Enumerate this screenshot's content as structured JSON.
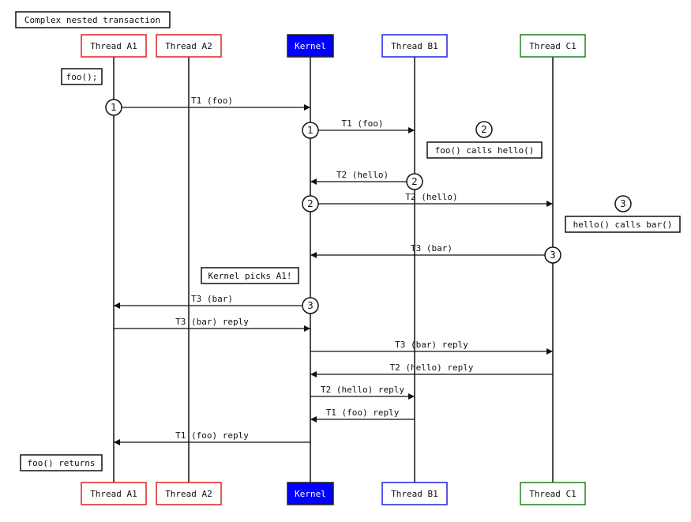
{
  "title": "Complex nested transaction",
  "participants": [
    {
      "id": "A1",
      "label": "Thread A1",
      "border": "#e02020",
      "fill": "#ffffff",
      "text": "#111111"
    },
    {
      "id": "A2",
      "label": "Thread A2",
      "border": "#e02020",
      "fill": "#ffffff",
      "text": "#111111"
    },
    {
      "id": "K",
      "label": "Kernel",
      "border": "#222222",
      "fill": "#0000ff",
      "text": "#ffffff"
    },
    {
      "id": "B1",
      "label": "Thread B1",
      "border": "#2020e0",
      "fill": "#ffffff",
      "text": "#111111"
    },
    {
      "id": "C1",
      "label": "Thread C1",
      "border": "#208020",
      "fill": "#ffffff",
      "text": "#111111"
    }
  ],
  "messages": [
    {
      "from": "A1",
      "to": "K",
      "label": "T1 (foo)",
      "marker": "1"
    },
    {
      "from": "K",
      "to": "B1",
      "label": "T1 (foo)",
      "marker": "1"
    },
    {
      "from": "B1",
      "to": "K",
      "label": "T2 (hello)",
      "marker": "2"
    },
    {
      "from": "K",
      "to": "C1",
      "label": "T2 (hello)",
      "marker": "2"
    },
    {
      "from": "C1",
      "to": "K",
      "label": "T3 (bar)",
      "marker": "3"
    },
    {
      "from": "K",
      "to": "A1",
      "label": "T3 (bar)",
      "marker": "3"
    },
    {
      "from": "A1",
      "to": "K",
      "label": "T3 (bar) reply",
      "marker": ""
    },
    {
      "from": "K",
      "to": "C1",
      "label": "T3 (bar) reply",
      "marker": ""
    },
    {
      "from": "C1",
      "to": "K",
      "label": "T2 (hello) reply",
      "marker": ""
    },
    {
      "from": "K",
      "to": "B1",
      "label": "T2 (hello) reply",
      "marker": ""
    },
    {
      "from": "B1",
      "to": "K",
      "label": "T1 (foo) reply",
      "marker": ""
    },
    {
      "from": "K",
      "to": "A1",
      "label": "T1 (foo) reply",
      "marker": ""
    }
  ],
  "notes": [
    {
      "text": "foo();",
      "marker": ""
    },
    {
      "text": "foo() calls hello()",
      "marker": "2"
    },
    {
      "text": "hello() calls bar()",
      "marker": "3"
    },
    {
      "text": "Kernel picks A1!",
      "marker": ""
    },
    {
      "text": "foo() returns",
      "marker": ""
    }
  ]
}
